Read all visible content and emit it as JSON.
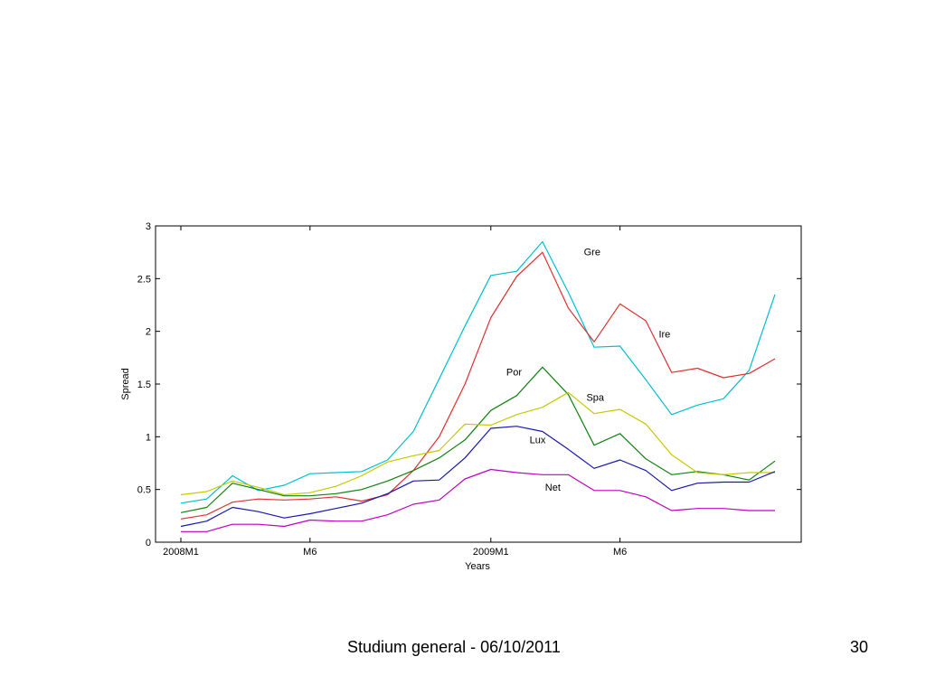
{
  "footer": {
    "text": "Studium general - 06/10/2011",
    "page": "30"
  },
  "chart_data": {
    "type": "line",
    "title": "",
    "xlabel": "Years",
    "ylabel": "Spread",
    "xlim": [
      0,
      23
    ],
    "ylim": [
      0,
      3
    ],
    "yticks": [
      0,
      0.5,
      1,
      1.5,
      2,
      2.5,
      3
    ],
    "xticks": [
      {
        "x": 0,
        "label": "2008M1"
      },
      {
        "x": 5,
        "label": "M6"
      },
      {
        "x": 12,
        "label": "2009M1"
      },
      {
        "x": 17,
        "label": "M6"
      }
    ],
    "grid": false,
    "legend": "none",
    "x": [
      0,
      1,
      2,
      3,
      4,
      5,
      6,
      7,
      8,
      9,
      10,
      11,
      12,
      13,
      14,
      15,
      16,
      17,
      18,
      19,
      20,
      21,
      22,
      23
    ],
    "series": [
      {
        "name": "Gre",
        "color": "#00bfd0",
        "label_x": 15.6,
        "label_y": 2.72,
        "values": [
          0.37,
          0.41,
          0.63,
          0.49,
          0.54,
          0.65,
          0.66,
          0.67,
          0.78,
          1.05,
          1.55,
          2.05,
          2.53,
          2.57,
          2.85,
          2.37,
          1.85,
          1.86,
          1.54,
          1.21,
          1.3,
          1.36,
          1.63,
          2.35
        ]
      },
      {
        "name": "Ire",
        "color": "#e03030",
        "label_x": 18.5,
        "label_y": 1.94,
        "values": [
          0.22,
          0.26,
          0.38,
          0.41,
          0.4,
          0.41,
          0.43,
          0.39,
          0.45,
          0.68,
          1.0,
          1.5,
          2.13,
          2.52,
          2.75,
          2.22,
          1.9,
          2.26,
          2.1,
          1.61,
          1.65,
          1.56,
          1.6,
          1.74
        ]
      },
      {
        "name": "Por",
        "color": "#108010",
        "label_x": 12.6,
        "label_y": 1.58,
        "values": [
          0.28,
          0.33,
          0.56,
          0.5,
          0.44,
          0.44,
          0.46,
          0.5,
          0.58,
          0.68,
          0.8,
          0.97,
          1.25,
          1.39,
          1.66,
          1.4,
          0.92,
          1.03,
          0.79,
          0.64,
          0.67,
          0.64,
          0.59,
          0.77
        ]
      },
      {
        "name": "Spa",
        "color": "#c8c800",
        "label_x": 15.7,
        "label_y": 1.34,
        "values": [
          0.45,
          0.48,
          0.58,
          0.52,
          0.45,
          0.47,
          0.53,
          0.63,
          0.76,
          0.82,
          0.87,
          1.12,
          1.11,
          1.21,
          1.28,
          1.42,
          1.22,
          1.26,
          1.12,
          0.83,
          0.66,
          0.64,
          0.66,
          0.66
        ]
      },
      {
        "name": "Lux",
        "color": "#1818b0",
        "label_x": 13.5,
        "label_y": 0.94,
        "values": [
          0.15,
          0.2,
          0.33,
          0.29,
          0.23,
          0.27,
          0.32,
          0.37,
          0.46,
          0.58,
          0.59,
          0.8,
          1.08,
          1.1,
          1.05,
          0.88,
          0.7,
          0.78,
          0.68,
          0.49,
          0.56,
          0.57,
          0.57,
          0.67
        ]
      },
      {
        "name": "Net",
        "color": "#c000c0",
        "label_x": 14.1,
        "label_y": 0.49,
        "values": [
          0.1,
          0.1,
          0.17,
          0.17,
          0.15,
          0.21,
          0.2,
          0.2,
          0.26,
          0.36,
          0.4,
          0.6,
          0.69,
          0.66,
          0.64,
          0.64,
          0.49,
          0.49,
          0.43,
          0.3,
          0.32,
          0.32,
          0.3,
          0.3
        ]
      }
    ]
  }
}
